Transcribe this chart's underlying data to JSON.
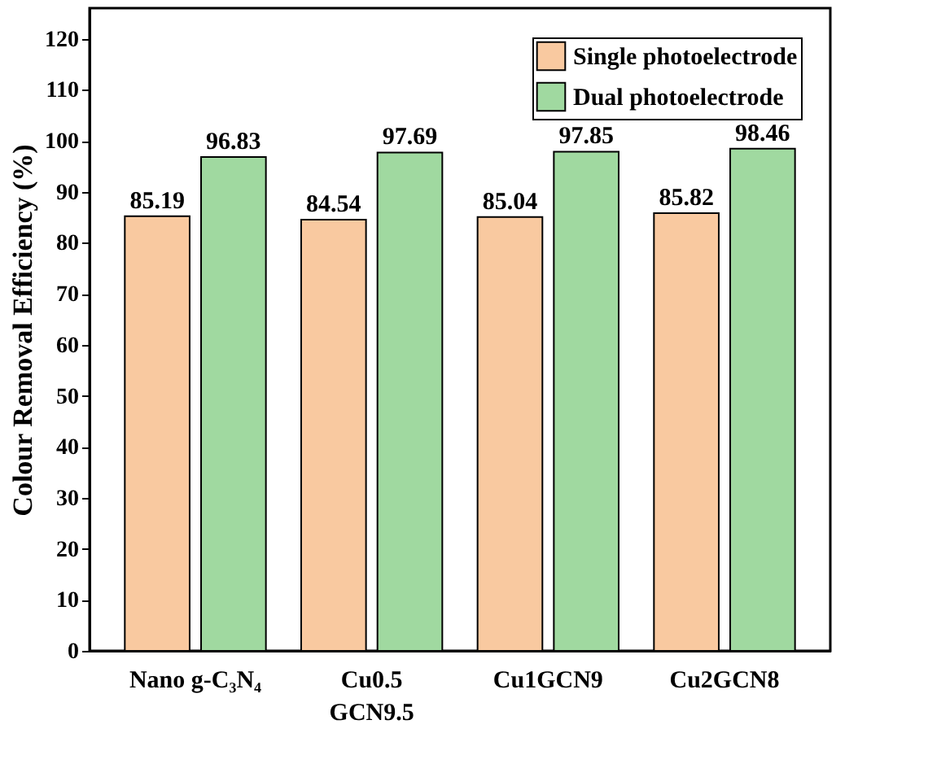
{
  "chart_data": {
    "type": "bar",
    "ylabel": "Colour Removal Efficiency (%)",
    "categories": [
      "Nano g-C₃N₄",
      "Cu0.5\nGCN9.5",
      "Cu1GCN9",
      "Cu2GCN8"
    ],
    "series": [
      {
        "name": "Single photoelectrode",
        "color": "#f9c9a0",
        "values": [
          85.19,
          84.54,
          85.04,
          85.82
        ]
      },
      {
        "name": "Dual photoelectrode",
        "color": "#a0d9a0",
        "values": [
          96.83,
          97.69,
          97.85,
          98.46
        ]
      }
    ],
    "ylim": [
      0,
      126
    ],
    "yticks": [
      0,
      10,
      20,
      30,
      40,
      50,
      60,
      70,
      80,
      90,
      100,
      110,
      120
    ],
    "data_labels": true,
    "legend": "top right",
    "grid": false
  }
}
